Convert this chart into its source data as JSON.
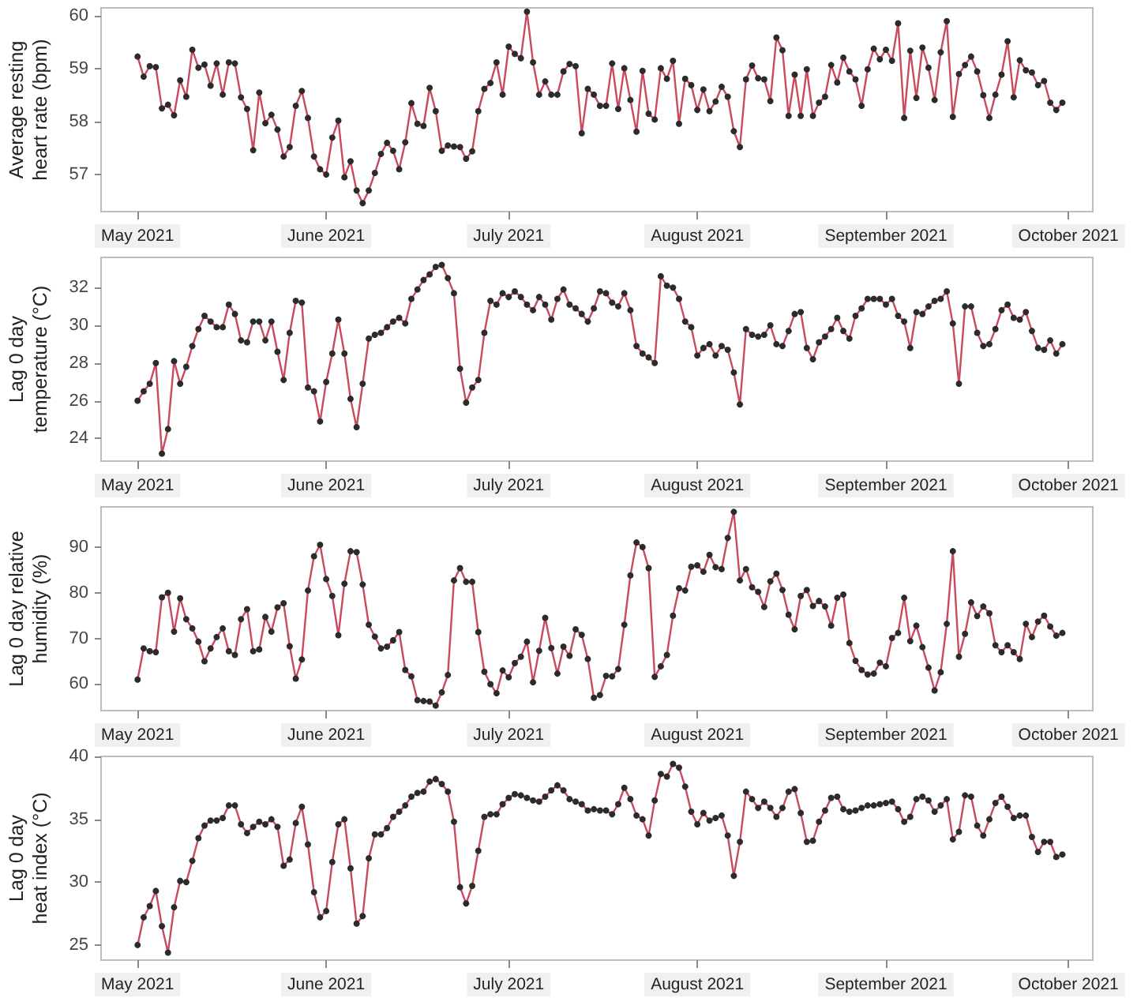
{
  "chart_data": [
    {
      "type": "line",
      "ylabel": "Average resting heart rate (bpm)",
      "color": "#c84a5c",
      "marker": "circle",
      "line_style": "solid",
      "grid": false,
      "xlim": [
        "2021-04-25",
        "2021-10-05"
      ],
      "ylim": [
        56.3,
        60.15
      ],
      "yticks": [
        57,
        58,
        59,
        60
      ],
      "xticks": [
        {
          "value": "2021-05-01",
          "label": "May 2021"
        },
        {
          "value": "2021-06-01",
          "label": "June 2021"
        },
        {
          "value": "2021-07-01",
          "label": "July 2021"
        },
        {
          "value": "2021-08-01",
          "label": "August 2021"
        },
        {
          "value": "2021-09-01",
          "label": "September 2021"
        },
        {
          "value": "2021-10-01",
          "label": "October 2021"
        }
      ],
      "x": [
        "2021-05-01",
        "2021-05-02",
        "2021-05-03",
        "2021-05-04",
        "2021-05-05",
        "2021-05-06",
        "2021-05-07",
        "2021-05-08",
        "2021-05-09",
        "2021-05-10",
        "2021-05-11",
        "2021-05-12",
        "2021-05-13",
        "2021-05-14",
        "2021-05-15",
        "2021-05-16",
        "2021-05-17",
        "2021-05-18",
        "2021-05-19",
        "2021-05-20",
        "2021-05-21",
        "2021-05-22",
        "2021-05-23",
        "2021-05-24",
        "2021-05-25",
        "2021-05-26",
        "2021-05-27",
        "2021-05-28",
        "2021-05-29",
        "2021-05-30",
        "2021-05-31",
        "2021-06-01",
        "2021-06-02",
        "2021-06-03",
        "2021-06-04",
        "2021-06-05",
        "2021-06-06",
        "2021-06-07",
        "2021-06-08",
        "2021-06-09",
        "2021-06-10",
        "2021-06-11",
        "2021-06-12",
        "2021-06-13",
        "2021-06-14",
        "2021-06-15",
        "2021-06-16",
        "2021-06-17",
        "2021-06-18",
        "2021-06-19",
        "2021-06-20",
        "2021-06-21",
        "2021-06-22",
        "2021-06-23",
        "2021-06-24",
        "2021-06-25",
        "2021-06-26",
        "2021-06-27",
        "2021-06-28",
        "2021-06-29",
        "2021-06-30",
        "2021-07-01",
        "2021-07-02",
        "2021-07-03",
        "2021-07-04",
        "2021-07-05",
        "2021-07-06",
        "2021-07-07",
        "2021-07-08",
        "2021-07-09",
        "2021-07-10",
        "2021-07-11",
        "2021-07-12",
        "2021-07-13",
        "2021-07-14",
        "2021-07-15",
        "2021-07-16",
        "2021-07-17",
        "2021-07-18",
        "2021-07-19",
        "2021-07-20",
        "2021-07-21",
        "2021-07-22",
        "2021-07-23",
        "2021-07-24",
        "2021-07-25",
        "2021-07-26",
        "2021-07-27",
        "2021-07-28",
        "2021-07-29",
        "2021-07-30",
        "2021-07-31",
        "2021-08-01",
        "2021-08-02",
        "2021-08-03",
        "2021-08-04",
        "2021-08-05",
        "2021-08-06",
        "2021-08-07",
        "2021-08-08",
        "2021-08-09",
        "2021-08-10",
        "2021-08-11",
        "2021-08-12",
        "2021-08-13",
        "2021-08-14",
        "2021-08-15",
        "2021-08-16",
        "2021-08-17",
        "2021-08-18",
        "2021-08-19",
        "2021-08-20",
        "2021-08-21",
        "2021-08-22",
        "2021-08-23",
        "2021-08-24",
        "2021-08-25",
        "2021-08-26",
        "2021-08-27",
        "2021-08-28",
        "2021-08-29",
        "2021-08-30",
        "2021-08-31",
        "2021-09-01",
        "2021-09-02",
        "2021-09-03",
        "2021-09-04",
        "2021-09-05",
        "2021-09-06",
        "2021-09-07",
        "2021-09-08",
        "2021-09-09",
        "2021-09-10",
        "2021-09-11",
        "2021-09-12",
        "2021-09-13",
        "2021-09-14",
        "2021-09-15",
        "2021-09-16",
        "2021-09-17",
        "2021-09-18",
        "2021-09-19",
        "2021-09-20",
        "2021-09-21",
        "2021-09-22",
        "2021-09-23",
        "2021-09-24",
        "2021-09-25",
        "2021-09-26",
        "2021-09-27",
        "2021-09-28",
        "2021-09-29",
        "2021-09-30"
      ],
      "values": [
        59.23,
        58.85,
        59.05,
        59.03,
        58.25,
        58.32,
        58.12,
        58.78,
        58.47,
        59.36,
        59.02,
        59.08,
        58.68,
        59.1,
        58.51,
        59.12,
        59.1,
        58.46,
        58.24,
        57.46,
        58.55,
        57.97,
        58.13,
        57.85,
        57.34,
        57.52,
        58.3,
        58.58,
        58.07,
        57.34,
        57.1,
        57.0,
        57.7,
        58.02,
        56.95,
        57.25,
        56.7,
        56.46,
        56.7,
        57.03,
        57.39,
        57.6,
        57.45,
        57.1,
        57.61,
        58.35,
        57.96,
        57.92,
        58.64,
        58.2,
        57.45,
        57.55,
        57.53,
        57.52,
        57.3,
        57.44,
        58.2,
        58.62,
        58.73,
        59.12,
        58.51,
        59.42,
        59.28,
        59.2,
        60.08,
        59.12,
        58.51,
        58.76,
        58.51,
        58.51,
        58.95,
        59.09,
        59.05,
        57.78,
        58.62,
        58.51,
        58.3,
        58.3,
        59.1,
        58.24,
        59.01,
        58.41,
        57.81,
        58.96,
        58.15,
        58.04,
        59.01,
        58.81,
        59.15,
        57.96,
        58.81,
        58.69,
        58.22,
        58.61,
        58.2,
        58.38,
        58.66,
        58.47,
        57.82,
        57.52,
        58.8,
        59.06,
        58.82,
        58.8,
        58.39,
        59.59,
        59.35,
        58.11,
        58.89,
        58.11,
        58.99,
        58.11,
        58.36,
        58.47,
        59.07,
        58.74,
        59.21,
        58.95,
        58.8,
        58.3,
        58.99,
        59.38,
        59.18,
        59.36,
        59.15,
        59.86,
        58.07,
        59.34,
        58.45,
        59.4,
        59.02,
        58.41,
        59.31,
        59.9,
        58.09,
        58.9,
        59.07,
        59.23,
        58.95,
        58.5,
        58.07,
        58.51,
        58.89,
        59.52,
        58.46,
        59.16,
        58.97,
        58.93,
        58.69,
        58.77,
        58.36,
        58.22,
        58.36
      ]
    },
    {
      "type": "line",
      "ylabel": "Lag 0 day temperature (°C)",
      "color": "#c84a5c",
      "marker": "circle",
      "line_style": "solid",
      "grid": false,
      "xlim": [
        "2021-04-25",
        "2021-10-05"
      ],
      "ylim": [
        22.8,
        33.6
      ],
      "yticks": [
        24,
        26,
        28,
        30,
        32
      ],
      "xticks": [
        {
          "value": "2021-05-01",
          "label": "May 2021"
        },
        {
          "value": "2021-06-01",
          "label": "June 2021"
        },
        {
          "value": "2021-07-01",
          "label": "July 2021"
        },
        {
          "value": "2021-08-01",
          "label": "August 2021"
        },
        {
          "value": "2021-09-01",
          "label": "September 2021"
        },
        {
          "value": "2021-10-01",
          "label": "October 2021"
        }
      ],
      "x": [
        "2021-05-01",
        "2021-05-02",
        "2021-05-03",
        "2021-05-04",
        "2021-05-05",
        "2021-05-06",
        "2021-05-07",
        "2021-05-08",
        "2021-05-09",
        "2021-05-10",
        "2021-05-11",
        "2021-05-12",
        "2021-05-13",
        "2021-05-14",
        "2021-05-15",
        "2021-05-16",
        "2021-05-17",
        "2021-05-18",
        "2021-05-19",
        "2021-05-20",
        "2021-05-21",
        "2021-05-22",
        "2021-05-23",
        "2021-05-24",
        "2021-05-25",
        "2021-05-26",
        "2021-05-27",
        "2021-05-28",
        "2021-05-29",
        "2021-05-30",
        "2021-05-31",
        "2021-06-01",
        "2021-06-02",
        "2021-06-03",
        "2021-06-04",
        "2021-06-05",
        "2021-06-06",
        "2021-06-07",
        "2021-06-08",
        "2021-06-09",
        "2021-06-10",
        "2021-06-11",
        "2021-06-12",
        "2021-06-13",
        "2021-06-14",
        "2021-06-15",
        "2021-06-16",
        "2021-06-17",
        "2021-06-18",
        "2021-06-19",
        "2021-06-20",
        "2021-06-21",
        "2021-06-22",
        "2021-06-23",
        "2021-06-24",
        "2021-06-25",
        "2021-06-26",
        "2021-06-27",
        "2021-06-28",
        "2021-06-29",
        "2021-06-30",
        "2021-07-01",
        "2021-07-02",
        "2021-07-03",
        "2021-07-04",
        "2021-07-05",
        "2021-07-06",
        "2021-07-07",
        "2021-07-08",
        "2021-07-09",
        "2021-07-10",
        "2021-07-11",
        "2021-07-12",
        "2021-07-13",
        "2021-07-14",
        "2021-07-15",
        "2021-07-16",
        "2021-07-17",
        "2021-07-18",
        "2021-07-19",
        "2021-07-20",
        "2021-07-21",
        "2021-07-22",
        "2021-07-23",
        "2021-07-24",
        "2021-07-25",
        "2021-07-26",
        "2021-07-27",
        "2021-07-28",
        "2021-07-29",
        "2021-07-30",
        "2021-07-31",
        "2021-08-01",
        "2021-08-02",
        "2021-08-03",
        "2021-08-04",
        "2021-08-05",
        "2021-08-06",
        "2021-08-07",
        "2021-08-08",
        "2021-08-09",
        "2021-08-10",
        "2021-08-11",
        "2021-08-12",
        "2021-08-13",
        "2021-08-14",
        "2021-08-15",
        "2021-08-16",
        "2021-08-17",
        "2021-08-18",
        "2021-08-19",
        "2021-08-20",
        "2021-08-21",
        "2021-08-22",
        "2021-08-23",
        "2021-08-24",
        "2021-08-25",
        "2021-08-26",
        "2021-08-27",
        "2021-08-28",
        "2021-08-29",
        "2021-08-30",
        "2021-08-31",
        "2021-09-01",
        "2021-09-02",
        "2021-09-03",
        "2021-09-04",
        "2021-09-05",
        "2021-09-06",
        "2021-09-07",
        "2021-09-08",
        "2021-09-09",
        "2021-09-10",
        "2021-09-11",
        "2021-09-12",
        "2021-09-13",
        "2021-09-14",
        "2021-09-15",
        "2021-09-16",
        "2021-09-17",
        "2021-09-18",
        "2021-09-19",
        "2021-09-20",
        "2021-09-21",
        "2021-09-22",
        "2021-09-23",
        "2021-09-24",
        "2021-09-25",
        "2021-09-26",
        "2021-09-27",
        "2021-09-28",
        "2021-09-29",
        "2021-09-30"
      ],
      "values": [
        26.0,
        26.5,
        26.9,
        28.0,
        23.2,
        24.5,
        28.1,
        26.9,
        27.8,
        28.9,
        29.8,
        30.5,
        30.2,
        29.9,
        29.9,
        31.1,
        30.6,
        29.2,
        29.1,
        30.2,
        30.2,
        29.2,
        30.2,
        28.6,
        27.1,
        29.6,
        31.3,
        31.2,
        26.7,
        26.5,
        24.9,
        27.0,
        28.5,
        30.3,
        28.5,
        26.1,
        24.6,
        26.9,
        29.3,
        29.5,
        29.6,
        29.9,
        30.2,
        30.4,
        30.1,
        31.4,
        31.9,
        32.4,
        32.7,
        33.1,
        33.2,
        32.5,
        31.7,
        27.7,
        25.9,
        26.7,
        27.1,
        29.6,
        31.3,
        31.1,
        31.7,
        31.5,
        31.8,
        31.5,
        31.1,
        30.8,
        31.5,
        31.1,
        30.3,
        31.4,
        31.9,
        31.1,
        30.9,
        30.6,
        30.2,
        30.9,
        31.8,
        31.7,
        31.2,
        31.0,
        31.7,
        30.8,
        28.9,
        28.5,
        28.3,
        28.0,
        32.6,
        32.1,
        32.0,
        31.4,
        30.2,
        29.9,
        28.4,
        28.8,
        29.0,
        28.4,
        28.9,
        28.7,
        27.5,
        25.8,
        29.8,
        29.5,
        29.4,
        29.5,
        30.0,
        29.0,
        28.9,
        29.7,
        30.6,
        30.7,
        28.8,
        28.2,
        29.1,
        29.4,
        29.8,
        30.4,
        29.7,
        29.3,
        30.5,
        30.9,
        31.4,
        31.4,
        31.4,
        31.1,
        31.4,
        30.5,
        30.2,
        28.8,
        30.7,
        30.6,
        31.0,
        31.3,
        31.4,
        31.8,
        30.1,
        26.9,
        31.0,
        31.0,
        29.6,
        28.9,
        29.0,
        29.8,
        30.8,
        31.1,
        30.4,
        30.3,
        30.7,
        29.7,
        28.8,
        28.7,
        29.2,
        28.5,
        29.0
      ]
    },
    {
      "type": "line",
      "ylabel": "Lag 0 day relative humidity (%)",
      "color": "#c84a5c",
      "marker": "circle",
      "line_style": "solid",
      "grid": false,
      "xlim": [
        "2021-04-25",
        "2021-10-05"
      ],
      "ylim": [
        54.2,
        98.8
      ],
      "yticks": [
        60,
        70,
        80,
        90
      ],
      "xticks": [
        {
          "value": "2021-05-01",
          "label": "May 2021"
        },
        {
          "value": "2021-06-01",
          "label": "June 2021"
        },
        {
          "value": "2021-07-01",
          "label": "July 2021"
        },
        {
          "value": "2021-08-01",
          "label": "August 2021"
        },
        {
          "value": "2021-09-01",
          "label": "September 2021"
        },
        {
          "value": "2021-10-01",
          "label": "October 2021"
        }
      ],
      "x": [
        "2021-05-01",
        "2021-05-02",
        "2021-05-03",
        "2021-05-04",
        "2021-05-05",
        "2021-05-06",
        "2021-05-07",
        "2021-05-08",
        "2021-05-09",
        "2021-05-10",
        "2021-05-11",
        "2021-05-12",
        "2021-05-13",
        "2021-05-14",
        "2021-05-15",
        "2021-05-16",
        "2021-05-17",
        "2021-05-18",
        "2021-05-19",
        "2021-05-20",
        "2021-05-21",
        "2021-05-22",
        "2021-05-23",
        "2021-05-24",
        "2021-05-25",
        "2021-05-26",
        "2021-05-27",
        "2021-05-28",
        "2021-05-29",
        "2021-05-30",
        "2021-05-31",
        "2021-06-01",
        "2021-06-02",
        "2021-06-03",
        "2021-06-04",
        "2021-06-05",
        "2021-06-06",
        "2021-06-07",
        "2021-06-08",
        "2021-06-09",
        "2021-06-10",
        "2021-06-11",
        "2021-06-12",
        "2021-06-13",
        "2021-06-14",
        "2021-06-15",
        "2021-06-16",
        "2021-06-17",
        "2021-06-18",
        "2021-06-19",
        "2021-06-20",
        "2021-06-21",
        "2021-06-22",
        "2021-06-23",
        "2021-06-24",
        "2021-06-25",
        "2021-06-26",
        "2021-06-27",
        "2021-06-28",
        "2021-06-29",
        "2021-06-30",
        "2021-07-01",
        "2021-07-02",
        "2021-07-03",
        "2021-07-04",
        "2021-07-05",
        "2021-07-06",
        "2021-07-07",
        "2021-07-08",
        "2021-07-09",
        "2021-07-10",
        "2021-07-11",
        "2021-07-12",
        "2021-07-13",
        "2021-07-14",
        "2021-07-15",
        "2021-07-16",
        "2021-07-17",
        "2021-07-18",
        "2021-07-19",
        "2021-07-20",
        "2021-07-21",
        "2021-07-22",
        "2021-07-23",
        "2021-07-24",
        "2021-07-25",
        "2021-07-26",
        "2021-07-27",
        "2021-07-28",
        "2021-07-29",
        "2021-07-30",
        "2021-07-31",
        "2021-08-01",
        "2021-08-02",
        "2021-08-03",
        "2021-08-04",
        "2021-08-05",
        "2021-08-06",
        "2021-08-07",
        "2021-08-08",
        "2021-08-09",
        "2021-08-10",
        "2021-08-11",
        "2021-08-12",
        "2021-08-13",
        "2021-08-14",
        "2021-08-15",
        "2021-08-16",
        "2021-08-17",
        "2021-08-18",
        "2021-08-19",
        "2021-08-20",
        "2021-08-21",
        "2021-08-22",
        "2021-08-23",
        "2021-08-24",
        "2021-08-25",
        "2021-08-26",
        "2021-08-27",
        "2021-08-28",
        "2021-08-29",
        "2021-08-30",
        "2021-08-31",
        "2021-09-01",
        "2021-09-02",
        "2021-09-03",
        "2021-09-04",
        "2021-09-05",
        "2021-09-06",
        "2021-09-07",
        "2021-09-08",
        "2021-09-09",
        "2021-09-10",
        "2021-09-11",
        "2021-09-12",
        "2021-09-13",
        "2021-09-14",
        "2021-09-15",
        "2021-09-16",
        "2021-09-17",
        "2021-09-18",
        "2021-09-19",
        "2021-09-20",
        "2021-09-21",
        "2021-09-22",
        "2021-09-23",
        "2021-09-24",
        "2021-09-25",
        "2021-09-26",
        "2021-09-27",
        "2021-09-28",
        "2021-09-29",
        "2021-09-30"
      ],
      "values": [
        61,
        67.8,
        67.2,
        67,
        79,
        80,
        71.5,
        78.8,
        74.2,
        72.2,
        69.3,
        65,
        67.8,
        70.3,
        72.2,
        67.2,
        66.4,
        74.2,
        76.4,
        67.2,
        67.6,
        74.7,
        71.5,
        76.8,
        77.7,
        68.3,
        61.2,
        65.4,
        80.5,
        88,
        90.5,
        83,
        79.3,
        70.7,
        82,
        89.1,
        88.9,
        81.8,
        73,
        70.4,
        67.8,
        68.2,
        69.6,
        71.4,
        63.1,
        61.7,
        56.5,
        56.3,
        56.2,
        55.3,
        58.2,
        62,
        82.7,
        85.4,
        82.4,
        82.4,
        71.4,
        62.7,
        60,
        58,
        63,
        61.5,
        64.6,
        66,
        69.3,
        60.4,
        67.3,
        74.5,
        67.9,
        62.3,
        68.2,
        66.2,
        72,
        70.8,
        65.5,
        57,
        57.6,
        61.8,
        61.7,
        63.3,
        73,
        83.8,
        91,
        90,
        85.4,
        61.6,
        63.9,
        66.4,
        75,
        81,
        80.5,
        85.7,
        86,
        84.6,
        88.3,
        85.6,
        85.2,
        92,
        97.7,
        82.7,
        85.2,
        81.2,
        80.2,
        76.9,
        82.5,
        84.2,
        80.6,
        75.2,
        72,
        79.3,
        80.6,
        77.1,
        78.2,
        77,
        72.8,
        78.9,
        79.6,
        69,
        65.1,
        63.1,
        62.1,
        62.3,
        64.7,
        63.9,
        70.1,
        71.2,
        78.9,
        69.4,
        72.8,
        68.1,
        63.6,
        58.6,
        62.6,
        73.2,
        89.1,
        66,
        71,
        77.9,
        74.9,
        77,
        75.5,
        68.5,
        67,
        68.5,
        67,
        65.5,
        73.2,
        70.3,
        73.7,
        75,
        72.6,
        70.6,
        71.2
      ]
    },
    {
      "type": "line",
      "ylabel": "Lag 0 day heat index (°C)",
      "color": "#c84a5c",
      "marker": "circle",
      "line_style": "solid",
      "grid": false,
      "xlim": [
        "2021-04-25",
        "2021-10-05"
      ],
      "ylim": [
        23.8,
        40
      ],
      "yticks": [
        25,
        30,
        35,
        40
      ],
      "xticks": [
        {
          "value": "2021-05-01",
          "label": "May 2021"
        },
        {
          "value": "2021-06-01",
          "label": "June 2021"
        },
        {
          "value": "2021-07-01",
          "label": "July 2021"
        },
        {
          "value": "2021-08-01",
          "label": "August 2021"
        },
        {
          "value": "2021-09-01",
          "label": "September 2021"
        },
        {
          "value": "2021-10-01",
          "label": "October 2021"
        }
      ],
      "x": [
        "2021-05-01",
        "2021-05-02",
        "2021-05-03",
        "2021-05-04",
        "2021-05-05",
        "2021-05-06",
        "2021-05-07",
        "2021-05-08",
        "2021-05-09",
        "2021-05-10",
        "2021-05-11",
        "2021-05-12",
        "2021-05-13",
        "2021-05-14",
        "2021-05-15",
        "2021-05-16",
        "2021-05-17",
        "2021-05-18",
        "2021-05-19",
        "2021-05-20",
        "2021-05-21",
        "2021-05-22",
        "2021-05-23",
        "2021-05-24",
        "2021-05-25",
        "2021-05-26",
        "2021-05-27",
        "2021-05-28",
        "2021-05-29",
        "2021-05-30",
        "2021-05-31",
        "2021-06-01",
        "2021-06-02",
        "2021-06-03",
        "2021-06-04",
        "2021-06-05",
        "2021-06-06",
        "2021-06-07",
        "2021-06-08",
        "2021-06-09",
        "2021-06-10",
        "2021-06-11",
        "2021-06-12",
        "2021-06-13",
        "2021-06-14",
        "2021-06-15",
        "2021-06-16",
        "2021-06-17",
        "2021-06-18",
        "2021-06-19",
        "2021-06-20",
        "2021-06-21",
        "2021-06-22",
        "2021-06-23",
        "2021-06-24",
        "2021-06-25",
        "2021-06-26",
        "2021-06-27",
        "2021-06-28",
        "2021-06-29",
        "2021-06-30",
        "2021-07-01",
        "2021-07-02",
        "2021-07-03",
        "2021-07-04",
        "2021-07-05",
        "2021-07-06",
        "2021-07-07",
        "2021-07-08",
        "2021-07-09",
        "2021-07-10",
        "2021-07-11",
        "2021-07-12",
        "2021-07-13",
        "2021-07-14",
        "2021-07-15",
        "2021-07-16",
        "2021-07-17",
        "2021-07-18",
        "2021-07-19",
        "2021-07-20",
        "2021-07-21",
        "2021-07-22",
        "2021-07-23",
        "2021-07-24",
        "2021-07-25",
        "2021-07-26",
        "2021-07-27",
        "2021-07-28",
        "2021-07-29",
        "2021-07-30",
        "2021-07-31",
        "2021-08-01",
        "2021-08-02",
        "2021-08-03",
        "2021-08-04",
        "2021-08-05",
        "2021-08-06",
        "2021-08-07",
        "2021-08-08",
        "2021-08-09",
        "2021-08-10",
        "2021-08-11",
        "2021-08-12",
        "2021-08-13",
        "2021-08-14",
        "2021-08-15",
        "2021-08-16",
        "2021-08-17",
        "2021-08-18",
        "2021-08-19",
        "2021-08-20",
        "2021-08-21",
        "2021-08-22",
        "2021-08-23",
        "2021-08-24",
        "2021-08-25",
        "2021-08-26",
        "2021-08-27",
        "2021-08-28",
        "2021-08-29",
        "2021-08-30",
        "2021-08-31",
        "2021-09-01",
        "2021-09-02",
        "2021-09-03",
        "2021-09-04",
        "2021-09-05",
        "2021-09-06",
        "2021-09-07",
        "2021-09-08",
        "2021-09-09",
        "2021-09-10",
        "2021-09-11",
        "2021-09-12",
        "2021-09-13",
        "2021-09-14",
        "2021-09-15",
        "2021-09-16",
        "2021-09-17",
        "2021-09-18",
        "2021-09-19",
        "2021-09-20",
        "2021-09-21",
        "2021-09-22",
        "2021-09-23",
        "2021-09-24",
        "2021-09-25",
        "2021-09-26",
        "2021-09-27",
        "2021-09-28",
        "2021-09-29",
        "2021-09-30"
      ],
      "values": [
        25.0,
        27.2,
        28.1,
        29.3,
        26.5,
        24.4,
        28.0,
        30.1,
        30.0,
        31.7,
        33.5,
        34.5,
        34.9,
        34.9,
        35.1,
        36.1,
        36.1,
        34.6,
        33.9,
        34.4,
        34.8,
        34.6,
        35.0,
        34.4,
        31.3,
        31.8,
        34.7,
        36.0,
        33.0,
        29.2,
        27.2,
        27.7,
        31.6,
        34.6,
        35.0,
        31.1,
        26.7,
        27.3,
        31.9,
        33.8,
        33.8,
        34.3,
        35.2,
        35.6,
        36.1,
        36.8,
        37.1,
        37.2,
        38.0,
        38.2,
        37.8,
        37.2,
        34.8,
        29.6,
        28.3,
        29.7,
        32.5,
        35.2,
        35.4,
        35.4,
        36.2,
        36.7,
        37.0,
        36.9,
        36.7,
        36.5,
        36.4,
        36.8,
        37.3,
        37.7,
        37.3,
        36.6,
        36.4,
        36.2,
        35.7,
        35.8,
        35.7,
        35.7,
        35.4,
        36.2,
        37.5,
        36.6,
        35.3,
        35.0,
        33.7,
        36.5,
        38.6,
        38.4,
        39.4,
        39.1,
        37.6,
        35.6,
        34.6,
        35.5,
        34.9,
        35.1,
        35.3,
        33.7,
        30.5,
        33.2,
        37.2,
        36.6,
        35.9,
        36.4,
        35.9,
        35.2,
        35.9,
        37.2,
        37.4,
        35.5,
        33.2,
        33.3,
        34.8,
        35.7,
        36.7,
        36.8,
        35.8,
        35.6,
        35.7,
        35.9,
        36.1,
        36.1,
        36.2,
        36.3,
        36.4,
        35.8,
        34.8,
        35.2,
        36.6,
        36.8,
        36.5,
        35.6,
        36.1,
        36.6,
        33.4,
        34.0,
        36.9,
        36.8,
        34.5,
        33.7,
        35.0,
        36.3,
        36.8,
        36.0,
        35.1,
        35.3,
        35.3,
        33.6,
        32.4,
        33.2,
        33.2,
        32.0,
        32.2
      ]
    }
  ]
}
